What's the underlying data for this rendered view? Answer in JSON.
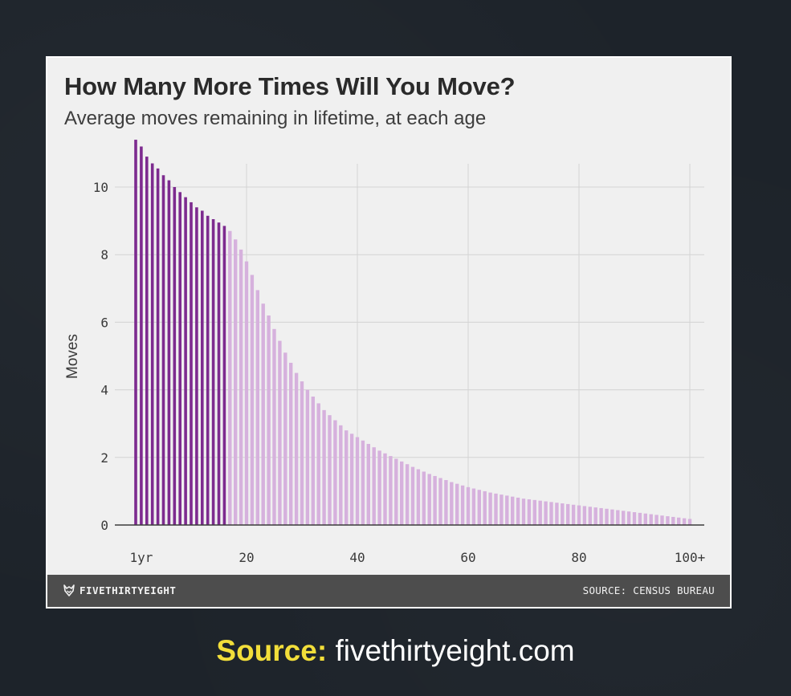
{
  "chart_card": {
    "title": "How Many More Times Will You Move?",
    "subtitle": "Average moves remaining in lifetime, at each age",
    "brand": "FIVETHIRTYEIGHT",
    "source": "SOURCE: CENSUS BUREAU"
  },
  "caption": {
    "label": "Source:",
    "text": "fivethirtyeight.com"
  },
  "colors": {
    "highlight": "#7d2b8f",
    "base": "#d6b1dd",
    "grid": "#d3d3d3",
    "axis": "#3a3a3a"
  },
  "chart_data": {
    "type": "bar",
    "title": "How Many More Times Will You Move?",
    "subtitle": "Average moves remaining in lifetime, at each age",
    "xlabel": "",
    "ylabel": "Moves",
    "xlim": [
      0,
      102
    ],
    "ylim": [
      0,
      11.5
    ],
    "xticks": [
      1,
      20,
      40,
      60,
      80,
      100
    ],
    "xtick_labels": [
      "1yr",
      "20",
      "40",
      "60",
      "80",
      "100+"
    ],
    "yticks": [
      0,
      2,
      4,
      6,
      8,
      10
    ],
    "grid": true,
    "highlight_ages": [
      0,
      16
    ],
    "x": [
      0,
      1,
      2,
      3,
      4,
      5,
      6,
      7,
      8,
      9,
      10,
      11,
      12,
      13,
      14,
      15,
      16,
      17,
      18,
      19,
      20,
      21,
      22,
      23,
      24,
      25,
      26,
      27,
      28,
      29,
      30,
      31,
      32,
      33,
      34,
      35,
      36,
      37,
      38,
      39,
      40,
      41,
      42,
      43,
      44,
      45,
      46,
      47,
      48,
      49,
      50,
      51,
      52,
      53,
      54,
      55,
      56,
      57,
      58,
      59,
      60,
      61,
      62,
      63,
      64,
      65,
      66,
      67,
      68,
      69,
      70,
      71,
      72,
      73,
      74,
      75,
      76,
      77,
      78,
      79,
      80,
      81,
      82,
      83,
      84,
      85,
      86,
      87,
      88,
      89,
      90,
      91,
      92,
      93,
      94,
      95,
      96,
      97,
      98,
      99,
      100
    ],
    "values": [
      11.4,
      11.2,
      10.9,
      10.7,
      10.55,
      10.35,
      10.2,
      10.0,
      9.85,
      9.7,
      9.55,
      9.4,
      9.3,
      9.15,
      9.05,
      8.95,
      8.85,
      8.7,
      8.45,
      8.15,
      7.8,
      7.4,
      6.95,
      6.55,
      6.2,
      5.8,
      5.45,
      5.1,
      4.8,
      4.5,
      4.25,
      4.0,
      3.8,
      3.6,
      3.4,
      3.25,
      3.1,
      2.95,
      2.8,
      2.7,
      2.6,
      2.5,
      2.4,
      2.3,
      2.2,
      2.12,
      2.04,
      1.96,
      1.88,
      1.8,
      1.72,
      1.65,
      1.58,
      1.51,
      1.45,
      1.39,
      1.33,
      1.27,
      1.22,
      1.17,
      1.12,
      1.08,
      1.04,
      1.0,
      0.96,
      0.93,
      0.9,
      0.87,
      0.84,
      0.81,
      0.78,
      0.76,
      0.74,
      0.72,
      0.7,
      0.68,
      0.66,
      0.64,
      0.62,
      0.6,
      0.58,
      0.56,
      0.54,
      0.52,
      0.5,
      0.48,
      0.46,
      0.44,
      0.42,
      0.4,
      0.38,
      0.36,
      0.34,
      0.32,
      0.3,
      0.28,
      0.26,
      0.24,
      0.22,
      0.2,
      0.18
    ]
  }
}
